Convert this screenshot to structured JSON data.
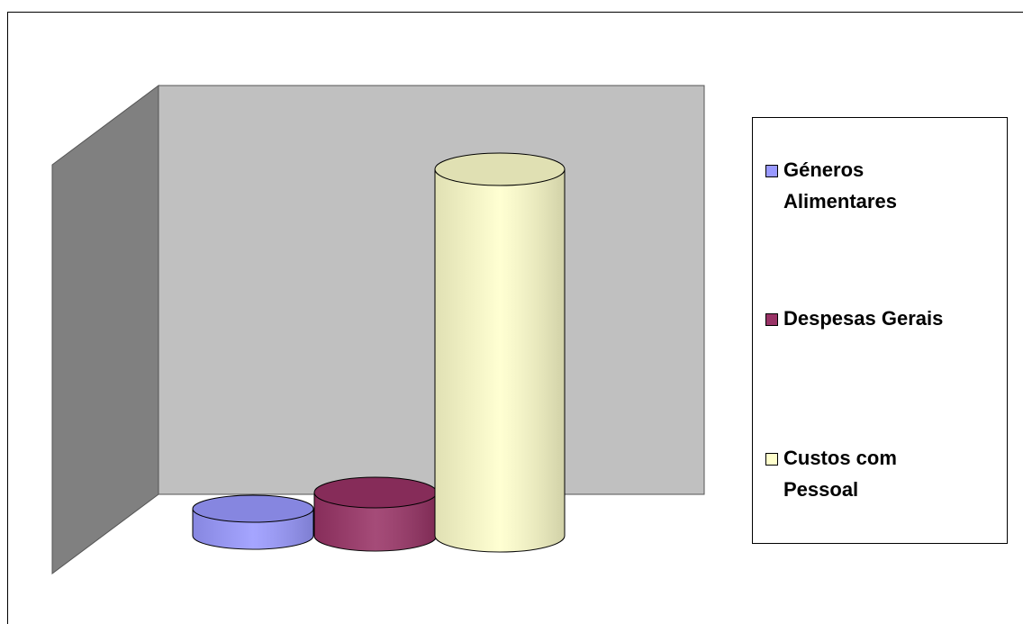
{
  "chart_data": {
    "type": "cylinder",
    "series": [
      {
        "name": "Géneros Alimentares",
        "color": "#9999ff",
        "values": [
          30
        ]
      },
      {
        "name": "Despesas Gerais",
        "color": "#993366",
        "values": [
          48
        ]
      },
      {
        "name": "Custos com Pessoal",
        "color": "#ffffcc",
        "values": [
          407
        ]
      }
    ],
    "legend": "right"
  }
}
